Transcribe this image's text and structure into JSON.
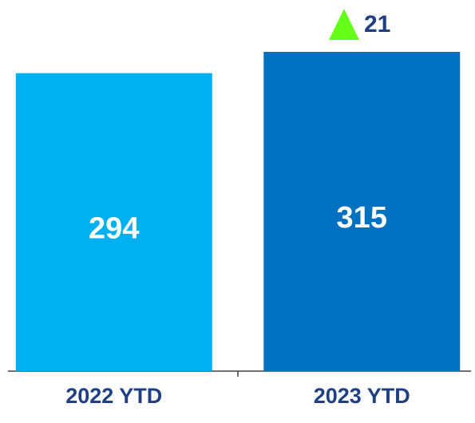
{
  "chart_data": {
    "type": "bar",
    "categories": [
      "2022 YTD",
      "2023 YTD"
    ],
    "values": [
      294,
      315
    ],
    "colors": [
      "#00b0f0",
      "#0070c0"
    ],
    "annotation": 21
  }
}
